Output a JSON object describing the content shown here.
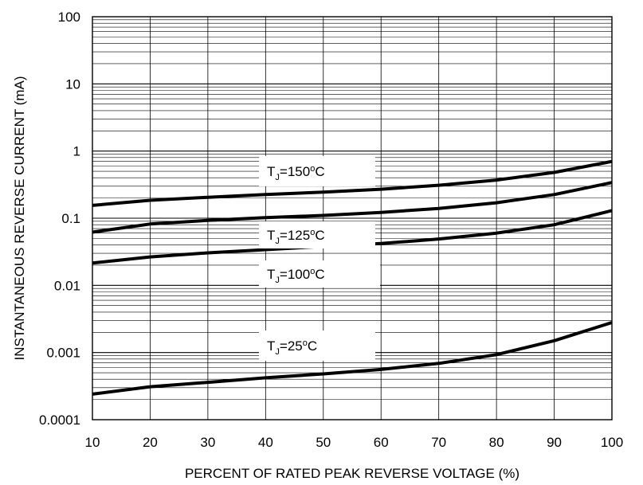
{
  "chart_data": {
    "type": "line",
    "title": "",
    "xlabel": "PERCENT OF RATED PEAK REVERSE VOLTAGE (%)",
    "ylabel": "INSTANTANEOUS REVERSE CURRENT (mA)",
    "xlim": [
      10,
      100
    ],
    "ylim": [
      0.0001,
      100
    ],
    "yscale": "log",
    "grid": true,
    "x_ticks": [
      "10",
      "20",
      "30",
      "40",
      "50",
      "60",
      "70",
      "80",
      "90",
      "100"
    ],
    "y_ticks": [
      "100",
      "10",
      "1",
      "0.1",
      "0.01",
      "0.001",
      "0.0001"
    ],
    "curve_labels": [
      {
        "main": "T",
        "sub": "J",
        "eq": "=150",
        "sup": "o",
        "unit": "C"
      },
      {
        "main": "T",
        "sub": "J",
        "eq": "=125",
        "sup": "o",
        "unit": "C"
      },
      {
        "main": "T",
        "sub": "J",
        "eq": "=100",
        "sup": "o",
        "unit": "C"
      },
      {
        "main": "T",
        "sub": "J",
        "eq": "=25",
        "sup": "o",
        "unit": "C"
      }
    ],
    "series": [
      {
        "x": [
          10,
          20,
          30,
          40,
          50,
          60,
          70,
          80,
          90,
          100
        ],
        "y": [
          0.155,
          0.185,
          0.205,
          0.225,
          0.245,
          0.27,
          0.31,
          0.37,
          0.48,
          0.7
        ]
      },
      {
        "x": [
          10,
          20,
          30,
          40,
          50,
          60,
          70,
          80,
          90,
          100
        ],
        "y": [
          0.062,
          0.082,
          0.093,
          0.102,
          0.11,
          0.122,
          0.14,
          0.17,
          0.225,
          0.34
        ]
      },
      {
        "x": [
          10,
          20,
          30,
          40,
          50,
          60,
          70,
          80,
          90,
          100
        ],
        "y": [
          0.0215,
          0.0265,
          0.0305,
          0.034,
          0.038,
          0.042,
          0.049,
          0.06,
          0.08,
          0.13
        ]
      },
      {
        "x": [
          10,
          20,
          30,
          40,
          50,
          60,
          70,
          80,
          90,
          100
        ],
        "y": [
          0.00024,
          0.00031,
          0.00036,
          0.00042,
          0.00048,
          0.00056,
          0.00069,
          0.00093,
          0.0015,
          0.0028
        ]
      }
    ]
  }
}
